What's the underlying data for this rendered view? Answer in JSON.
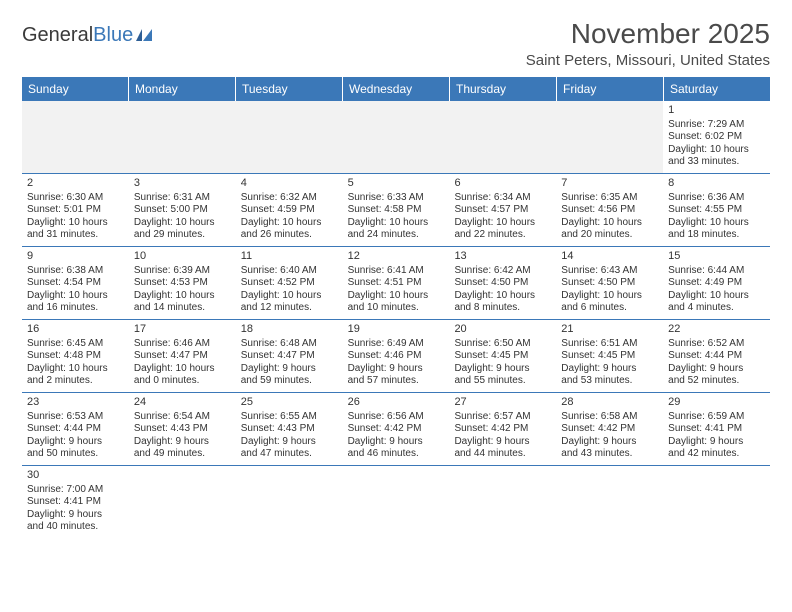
{
  "logo": {
    "text_dark": "General",
    "text_blue": "Blue"
  },
  "title": "November 2025",
  "location": "Saint Peters, Missouri, United States",
  "colors": {
    "header_bar": "#3b78b8",
    "header_text": "#ffffff",
    "border": "#3b78b8",
    "empty_bg": "#f2f2f2",
    "body_text": "#333333"
  },
  "days_of_week": [
    "Sunday",
    "Monday",
    "Tuesday",
    "Wednesday",
    "Thursday",
    "Friday",
    "Saturday"
  ],
  "weeks": [
    [
      {
        "n": "",
        "lines": [
          "",
          "",
          "",
          ""
        ],
        "empty": true
      },
      {
        "n": "",
        "lines": [
          "",
          "",
          "",
          ""
        ],
        "empty": true
      },
      {
        "n": "",
        "lines": [
          "",
          "",
          "",
          ""
        ],
        "empty": true
      },
      {
        "n": "",
        "lines": [
          "",
          "",
          "",
          ""
        ],
        "empty": true
      },
      {
        "n": "",
        "lines": [
          "",
          "",
          "",
          ""
        ],
        "empty": true
      },
      {
        "n": "",
        "lines": [
          "",
          "",
          "",
          ""
        ],
        "empty": true
      },
      {
        "n": "1",
        "lines": [
          "Sunrise: 7:29 AM",
          "Sunset: 6:02 PM",
          "Daylight: 10 hours",
          "and 33 minutes."
        ]
      }
    ],
    [
      {
        "n": "2",
        "lines": [
          "Sunrise: 6:30 AM",
          "Sunset: 5:01 PM",
          "Daylight: 10 hours",
          "and 31 minutes."
        ]
      },
      {
        "n": "3",
        "lines": [
          "Sunrise: 6:31 AM",
          "Sunset: 5:00 PM",
          "Daylight: 10 hours",
          "and 29 minutes."
        ]
      },
      {
        "n": "4",
        "lines": [
          "Sunrise: 6:32 AM",
          "Sunset: 4:59 PM",
          "Daylight: 10 hours",
          "and 26 minutes."
        ]
      },
      {
        "n": "5",
        "lines": [
          "Sunrise: 6:33 AM",
          "Sunset: 4:58 PM",
          "Daylight: 10 hours",
          "and 24 minutes."
        ]
      },
      {
        "n": "6",
        "lines": [
          "Sunrise: 6:34 AM",
          "Sunset: 4:57 PM",
          "Daylight: 10 hours",
          "and 22 minutes."
        ]
      },
      {
        "n": "7",
        "lines": [
          "Sunrise: 6:35 AM",
          "Sunset: 4:56 PM",
          "Daylight: 10 hours",
          "and 20 minutes."
        ]
      },
      {
        "n": "8",
        "lines": [
          "Sunrise: 6:36 AM",
          "Sunset: 4:55 PM",
          "Daylight: 10 hours",
          "and 18 minutes."
        ]
      }
    ],
    [
      {
        "n": "9",
        "lines": [
          "Sunrise: 6:38 AM",
          "Sunset: 4:54 PM",
          "Daylight: 10 hours",
          "and 16 minutes."
        ]
      },
      {
        "n": "10",
        "lines": [
          "Sunrise: 6:39 AM",
          "Sunset: 4:53 PM",
          "Daylight: 10 hours",
          "and 14 minutes."
        ]
      },
      {
        "n": "11",
        "lines": [
          "Sunrise: 6:40 AM",
          "Sunset: 4:52 PM",
          "Daylight: 10 hours",
          "and 12 minutes."
        ]
      },
      {
        "n": "12",
        "lines": [
          "Sunrise: 6:41 AM",
          "Sunset: 4:51 PM",
          "Daylight: 10 hours",
          "and 10 minutes."
        ]
      },
      {
        "n": "13",
        "lines": [
          "Sunrise: 6:42 AM",
          "Sunset: 4:50 PM",
          "Daylight: 10 hours",
          "and 8 minutes."
        ]
      },
      {
        "n": "14",
        "lines": [
          "Sunrise: 6:43 AM",
          "Sunset: 4:50 PM",
          "Daylight: 10 hours",
          "and 6 minutes."
        ]
      },
      {
        "n": "15",
        "lines": [
          "Sunrise: 6:44 AM",
          "Sunset: 4:49 PM",
          "Daylight: 10 hours",
          "and 4 minutes."
        ]
      }
    ],
    [
      {
        "n": "16",
        "lines": [
          "Sunrise: 6:45 AM",
          "Sunset: 4:48 PM",
          "Daylight: 10 hours",
          "and 2 minutes."
        ]
      },
      {
        "n": "17",
        "lines": [
          "Sunrise: 6:46 AM",
          "Sunset: 4:47 PM",
          "Daylight: 10 hours",
          "and 0 minutes."
        ]
      },
      {
        "n": "18",
        "lines": [
          "Sunrise: 6:48 AM",
          "Sunset: 4:47 PM",
          "Daylight: 9 hours",
          "and 59 minutes."
        ]
      },
      {
        "n": "19",
        "lines": [
          "Sunrise: 6:49 AM",
          "Sunset: 4:46 PM",
          "Daylight: 9 hours",
          "and 57 minutes."
        ]
      },
      {
        "n": "20",
        "lines": [
          "Sunrise: 6:50 AM",
          "Sunset: 4:45 PM",
          "Daylight: 9 hours",
          "and 55 minutes."
        ]
      },
      {
        "n": "21",
        "lines": [
          "Sunrise: 6:51 AM",
          "Sunset: 4:45 PM",
          "Daylight: 9 hours",
          "and 53 minutes."
        ]
      },
      {
        "n": "22",
        "lines": [
          "Sunrise: 6:52 AM",
          "Sunset: 4:44 PM",
          "Daylight: 9 hours",
          "and 52 minutes."
        ]
      }
    ],
    [
      {
        "n": "23",
        "lines": [
          "Sunrise: 6:53 AM",
          "Sunset: 4:44 PM",
          "Daylight: 9 hours",
          "and 50 minutes."
        ]
      },
      {
        "n": "24",
        "lines": [
          "Sunrise: 6:54 AM",
          "Sunset: 4:43 PM",
          "Daylight: 9 hours",
          "and 49 minutes."
        ]
      },
      {
        "n": "25",
        "lines": [
          "Sunrise: 6:55 AM",
          "Sunset: 4:43 PM",
          "Daylight: 9 hours",
          "and 47 minutes."
        ]
      },
      {
        "n": "26",
        "lines": [
          "Sunrise: 6:56 AM",
          "Sunset: 4:42 PM",
          "Daylight: 9 hours",
          "and 46 minutes."
        ]
      },
      {
        "n": "27",
        "lines": [
          "Sunrise: 6:57 AM",
          "Sunset: 4:42 PM",
          "Daylight: 9 hours",
          "and 44 minutes."
        ]
      },
      {
        "n": "28",
        "lines": [
          "Sunrise: 6:58 AM",
          "Sunset: 4:42 PM",
          "Daylight: 9 hours",
          "and 43 minutes."
        ]
      },
      {
        "n": "29",
        "lines": [
          "Sunrise: 6:59 AM",
          "Sunset: 4:41 PM",
          "Daylight: 9 hours",
          "and 42 minutes."
        ]
      }
    ],
    [
      {
        "n": "30",
        "lines": [
          "Sunrise: 7:00 AM",
          "Sunset: 4:41 PM",
          "Daylight: 9 hours",
          "and 40 minutes."
        ]
      },
      {
        "n": "",
        "lines": [
          "",
          "",
          "",
          ""
        ],
        "trailing": true
      },
      {
        "n": "",
        "lines": [
          "",
          "",
          "",
          ""
        ],
        "trailing": true
      },
      {
        "n": "",
        "lines": [
          "",
          "",
          "",
          ""
        ],
        "trailing": true
      },
      {
        "n": "",
        "lines": [
          "",
          "",
          "",
          ""
        ],
        "trailing": true
      },
      {
        "n": "",
        "lines": [
          "",
          "",
          "",
          ""
        ],
        "trailing": true
      },
      {
        "n": "",
        "lines": [
          "",
          "",
          "",
          ""
        ],
        "trailing": true
      }
    ]
  ]
}
